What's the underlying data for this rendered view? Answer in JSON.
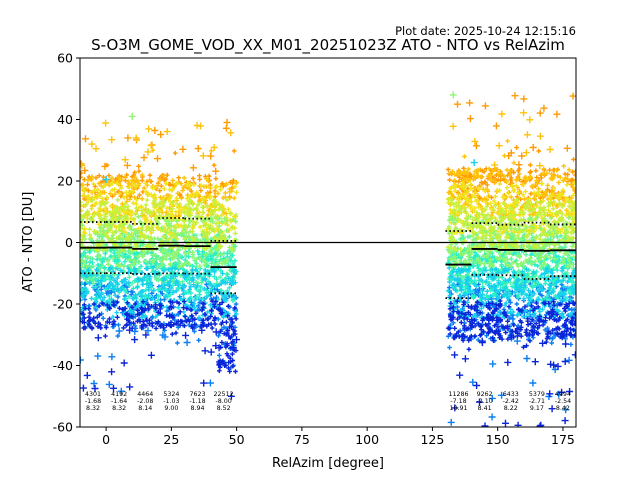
{
  "chart_data": {
    "type": "scatter",
    "plot_date": "Plot date: 2025-10-24 12:15:16",
    "title": "S-O3M_GOME_VOD_XX_M01_20251023Z ATO - NTO vs RelAzim",
    "xlabel": "RelAzim [degree]",
    "ylabel": "ATO - NTO [DU]",
    "xlim": [
      -10,
      180
    ],
    "ylim": [
      -60,
      60
    ],
    "xticks": [
      0,
      25,
      50,
      75,
      100,
      125,
      150,
      175
    ],
    "yticks": [
      -60,
      -40,
      -20,
      0,
      20,
      40,
      60
    ],
    "zero_line": 0,
    "bins": [
      {
        "x": [
          -10,
          0
        ],
        "count": "4301",
        "mean": "-1.68",
        "std": "8.32",
        "mean_value": -1.68,
        "std_value": 8.32
      },
      {
        "x": [
          0,
          10
        ],
        "count": "4192",
        "mean": "-1.64",
        "std": "8.32",
        "mean_value": -1.64,
        "std_value": 8.32
      },
      {
        "x": [
          10,
          20
        ],
        "count": "4464",
        "mean": "-2.08",
        "std": "8.14",
        "mean_value": -2.08,
        "std_value": 8.14
      },
      {
        "x": [
          20,
          30
        ],
        "count": "5324",
        "mean": "-1.03",
        "std": "9.00",
        "mean_value": -1.03,
        "std_value": 9.0
      },
      {
        "x": [
          30,
          40
        ],
        "count": "7623",
        "mean": "-1.18",
        "std": "8.94",
        "mean_value": -1.18,
        "std_value": 8.94
      },
      {
        "x": [
          40,
          50
        ],
        "count": "22512",
        "mean": "-8.00",
        "std": "8.52",
        "mean_value": -8.0,
        "std_value": 8.52
      },
      {
        "x": [
          130,
          140
        ],
        "count": "11286",
        "mean": "-7.18",
        "std": "10.91",
        "mean_value": -7.18,
        "std_value": 10.91
      },
      {
        "x": [
          140,
          150
        ],
        "count": "9262",
        "mean": "-2.10",
        "std": "8.41",
        "mean_value": -2.1,
        "std_value": 8.41
      },
      {
        "x": [
          150,
          160
        ],
        "count": "6433",
        "mean": "-2.42",
        "std": "8.22",
        "mean_value": -2.42,
        "std_value": 8.22
      },
      {
        "x": [
          160,
          170
        ],
        "count": "5379",
        "mean": "-2.71",
        "std": "9.17",
        "mean_value": -2.71,
        "std_value": 9.17
      },
      {
        "x": [
          170,
          180
        ],
        "count": "4994",
        "mean": "-2.54",
        "std": "8.42",
        "mean_value": -2.54,
        "std_value": 8.42
      }
    ],
    "point_clusters": [
      {
        "x_range": [
          -10,
          50
        ],
        "y_core": [
          -28,
          22
        ],
        "y_outliers": [
          -50,
          41
        ]
      },
      {
        "x_range": [
          131,
          180
        ],
        "y_core": [
          -32,
          24
        ],
        "y_outliers": [
          -60,
          48
        ]
      }
    ],
    "marker": "+",
    "colormap": [
      "#0a24d8",
      "#0a7ef2",
      "#18d0ee",
      "#27f0c8",
      "#5cf59a",
      "#8ef670",
      "#c6f03c",
      "#f0e41a",
      "#ffc20a",
      "#ff9a00"
    ]
  }
}
